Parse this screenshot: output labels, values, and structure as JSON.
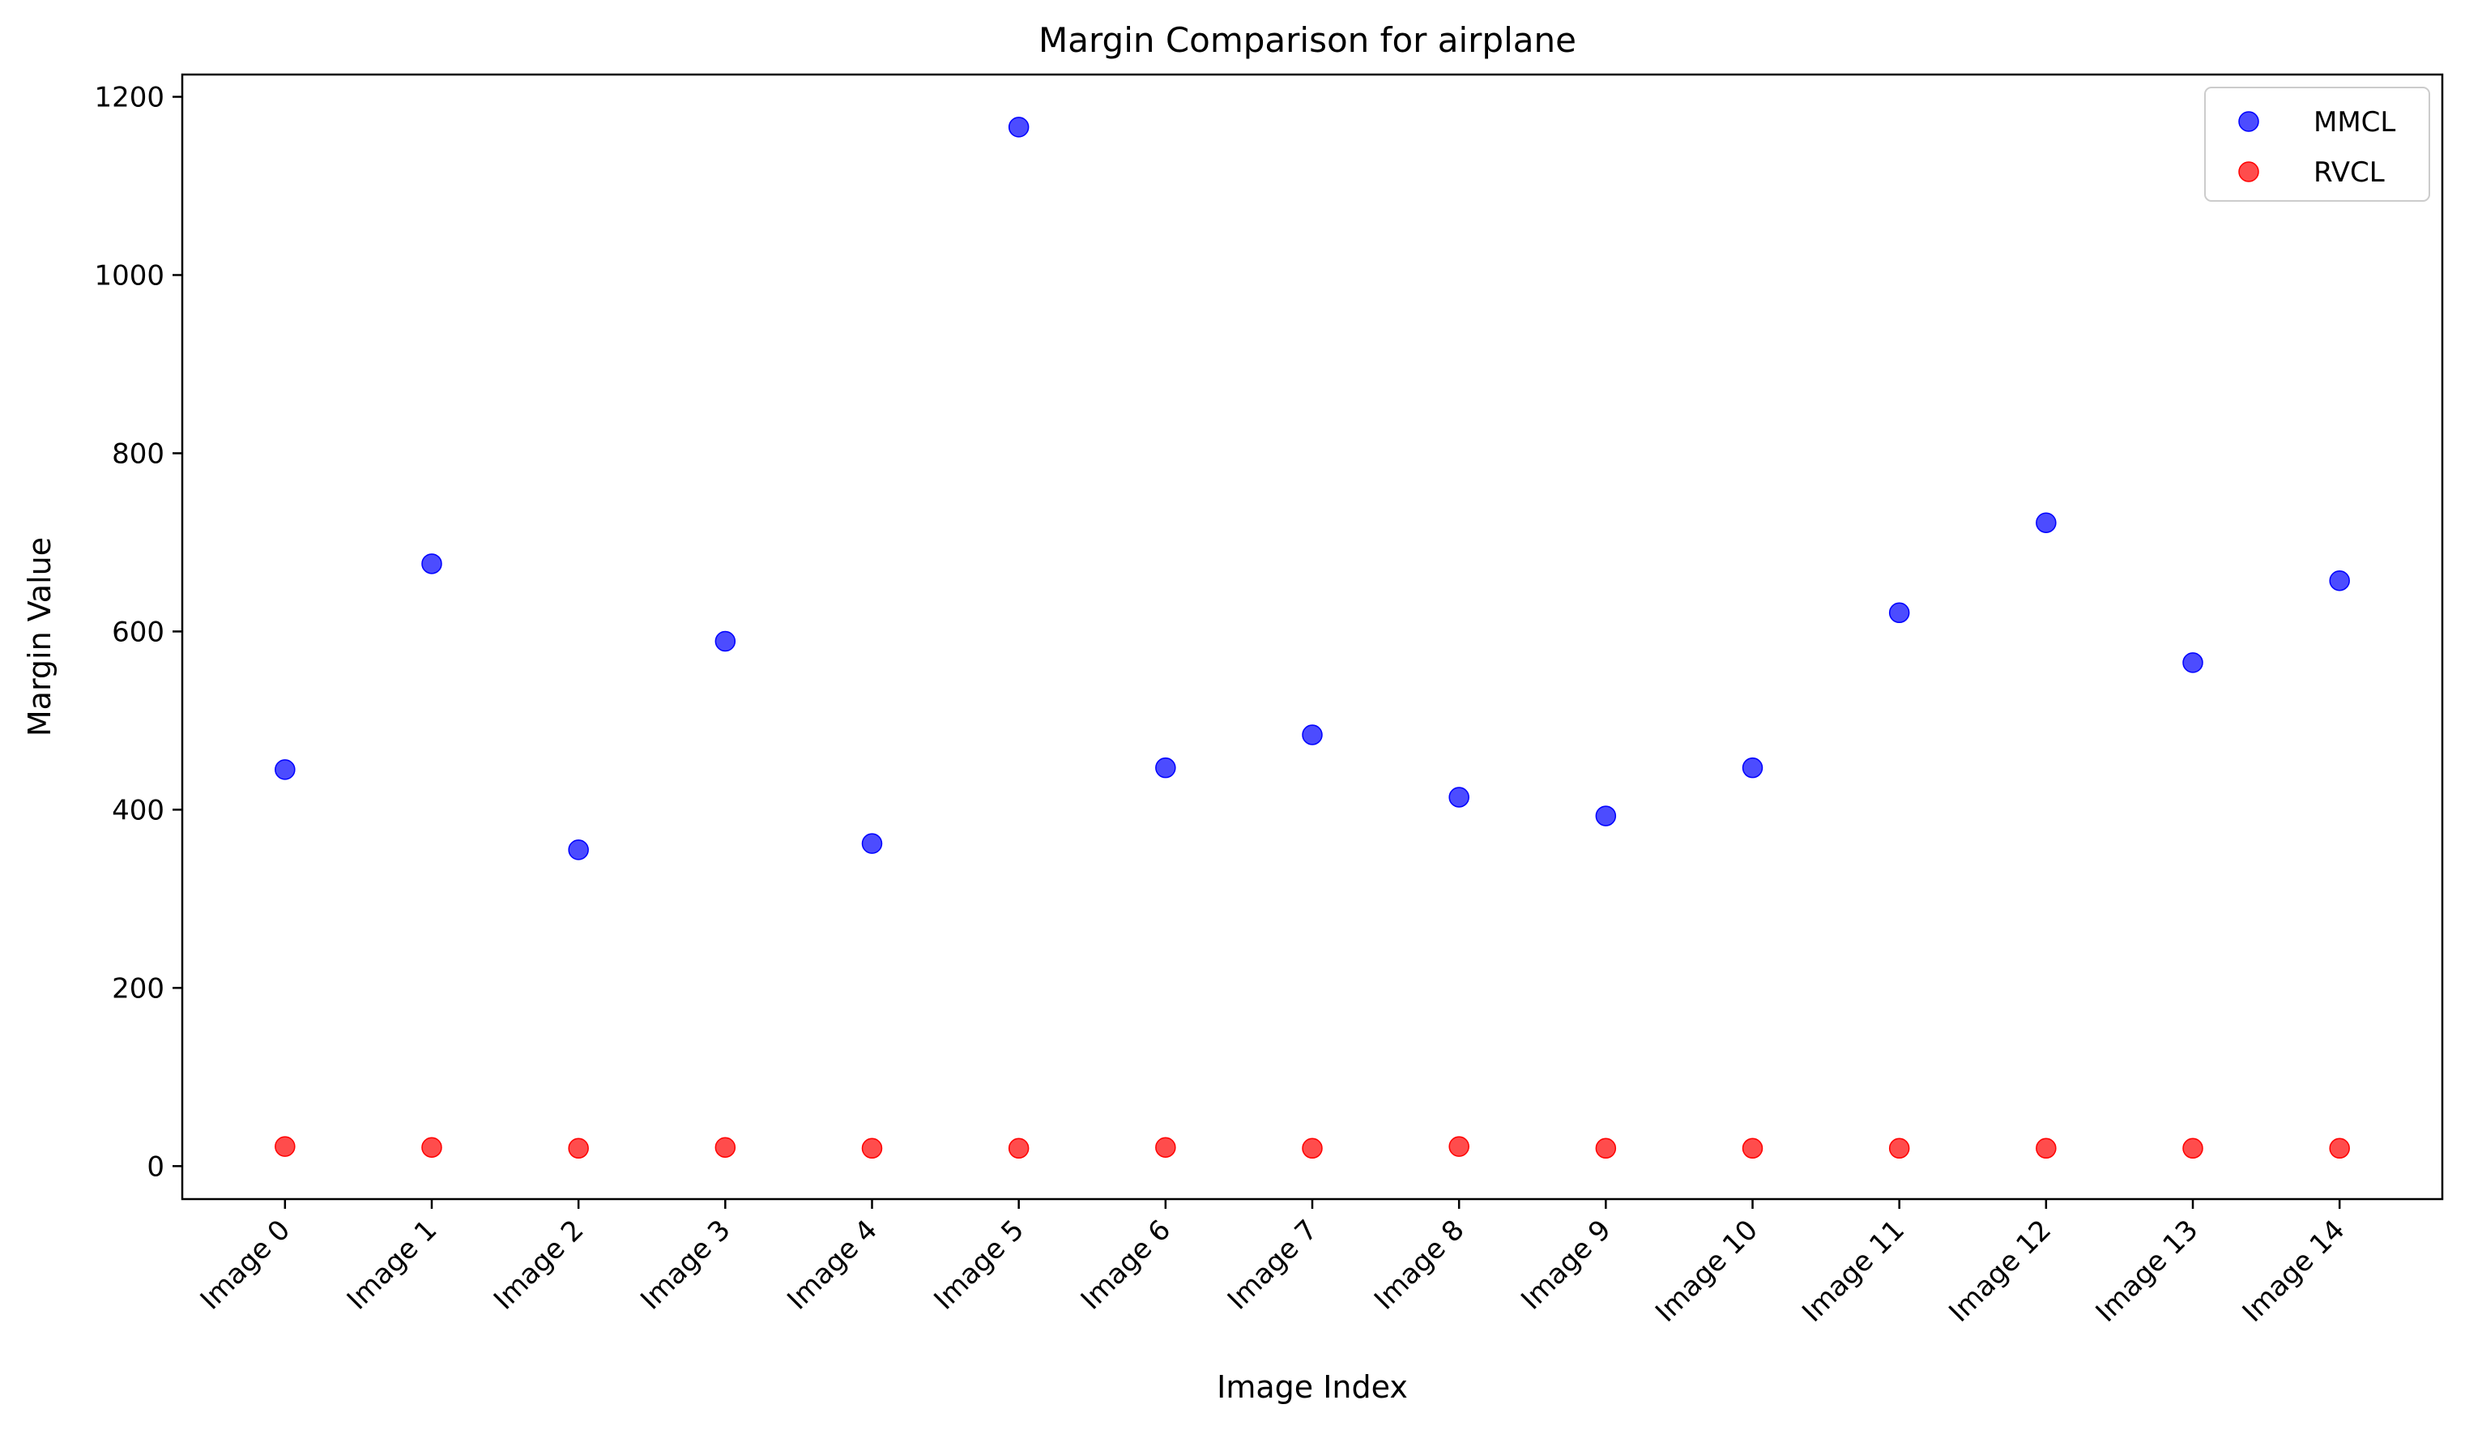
{
  "chart_data": {
    "type": "scatter",
    "title": "Margin Comparison for airplane",
    "xlabel": "Image Index",
    "ylabel": "Margin Value",
    "categories": [
      "Image 0",
      "Image 1",
      "Image 2",
      "Image 3",
      "Image 4",
      "Image 5",
      "Image 6",
      "Image 7",
      "Image 8",
      "Image 9",
      "Image 10",
      "Image 11",
      "Image 12",
      "Image 13",
      "Image 14"
    ],
    "ylim": [
      -37,
      1225
    ],
    "yticks": [
      0,
      200,
      400,
      600,
      800,
      1000,
      1200
    ],
    "grid": false,
    "legend_position": "top-right",
    "series": [
      {
        "name": "MMCL",
        "color": "#0000ff",
        "values": [
          445,
          676,
          355,
          589,
          362,
          1166,
          447,
          484,
          414,
          393,
          447,
          621,
          722,
          565,
          657
        ]
      },
      {
        "name": "RVCL",
        "color": "#ff0000",
        "values": [
          22,
          21,
          20,
          21,
          20,
          20,
          21,
          20,
          22,
          20,
          20,
          20,
          20,
          20,
          20
        ]
      }
    ]
  }
}
